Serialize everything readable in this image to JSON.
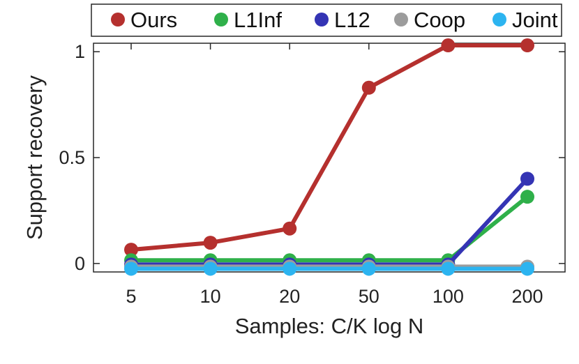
{
  "chart_data": {
    "type": "line",
    "title": "",
    "xlabel": "Samples: C/K log N",
    "ylabel": "Support recovery",
    "categories": [
      "5",
      "10",
      "20",
      "50",
      "100",
      "200"
    ],
    "yticks": [
      {
        "value": 0,
        "label": "0"
      },
      {
        "value": 0.5,
        "label": "0.5"
      },
      {
        "value": 1,
        "label": "1"
      }
    ],
    "ylim": [
      -0.04,
      1.04
    ],
    "grid": false,
    "legend_position": "top",
    "series": [
      {
        "name": "Ours",
        "color": "#b5302e",
        "values": [
          0.065,
          0.098,
          0.165,
          0.83,
          1.03,
          1.03
        ]
      },
      {
        "name": "L1Inf",
        "color": "#2fb04a",
        "values": [
          0.015,
          0.015,
          0.015,
          0.015,
          0.015,
          0.315
        ]
      },
      {
        "name": "L12",
        "color": "#3434b4",
        "values": [
          -0.005,
          -0.005,
          -0.005,
          -0.005,
          -0.005,
          0.4
        ]
      },
      {
        "name": "Coop",
        "color": "#9c9c9c",
        "values": [
          -0.015,
          -0.015,
          -0.015,
          -0.015,
          -0.015,
          -0.015
        ]
      },
      {
        "name": "Joint",
        "color": "#2cb4f0",
        "values": [
          -0.025,
          -0.025,
          -0.025,
          -0.025,
          -0.025,
          -0.025
        ]
      }
    ]
  }
}
